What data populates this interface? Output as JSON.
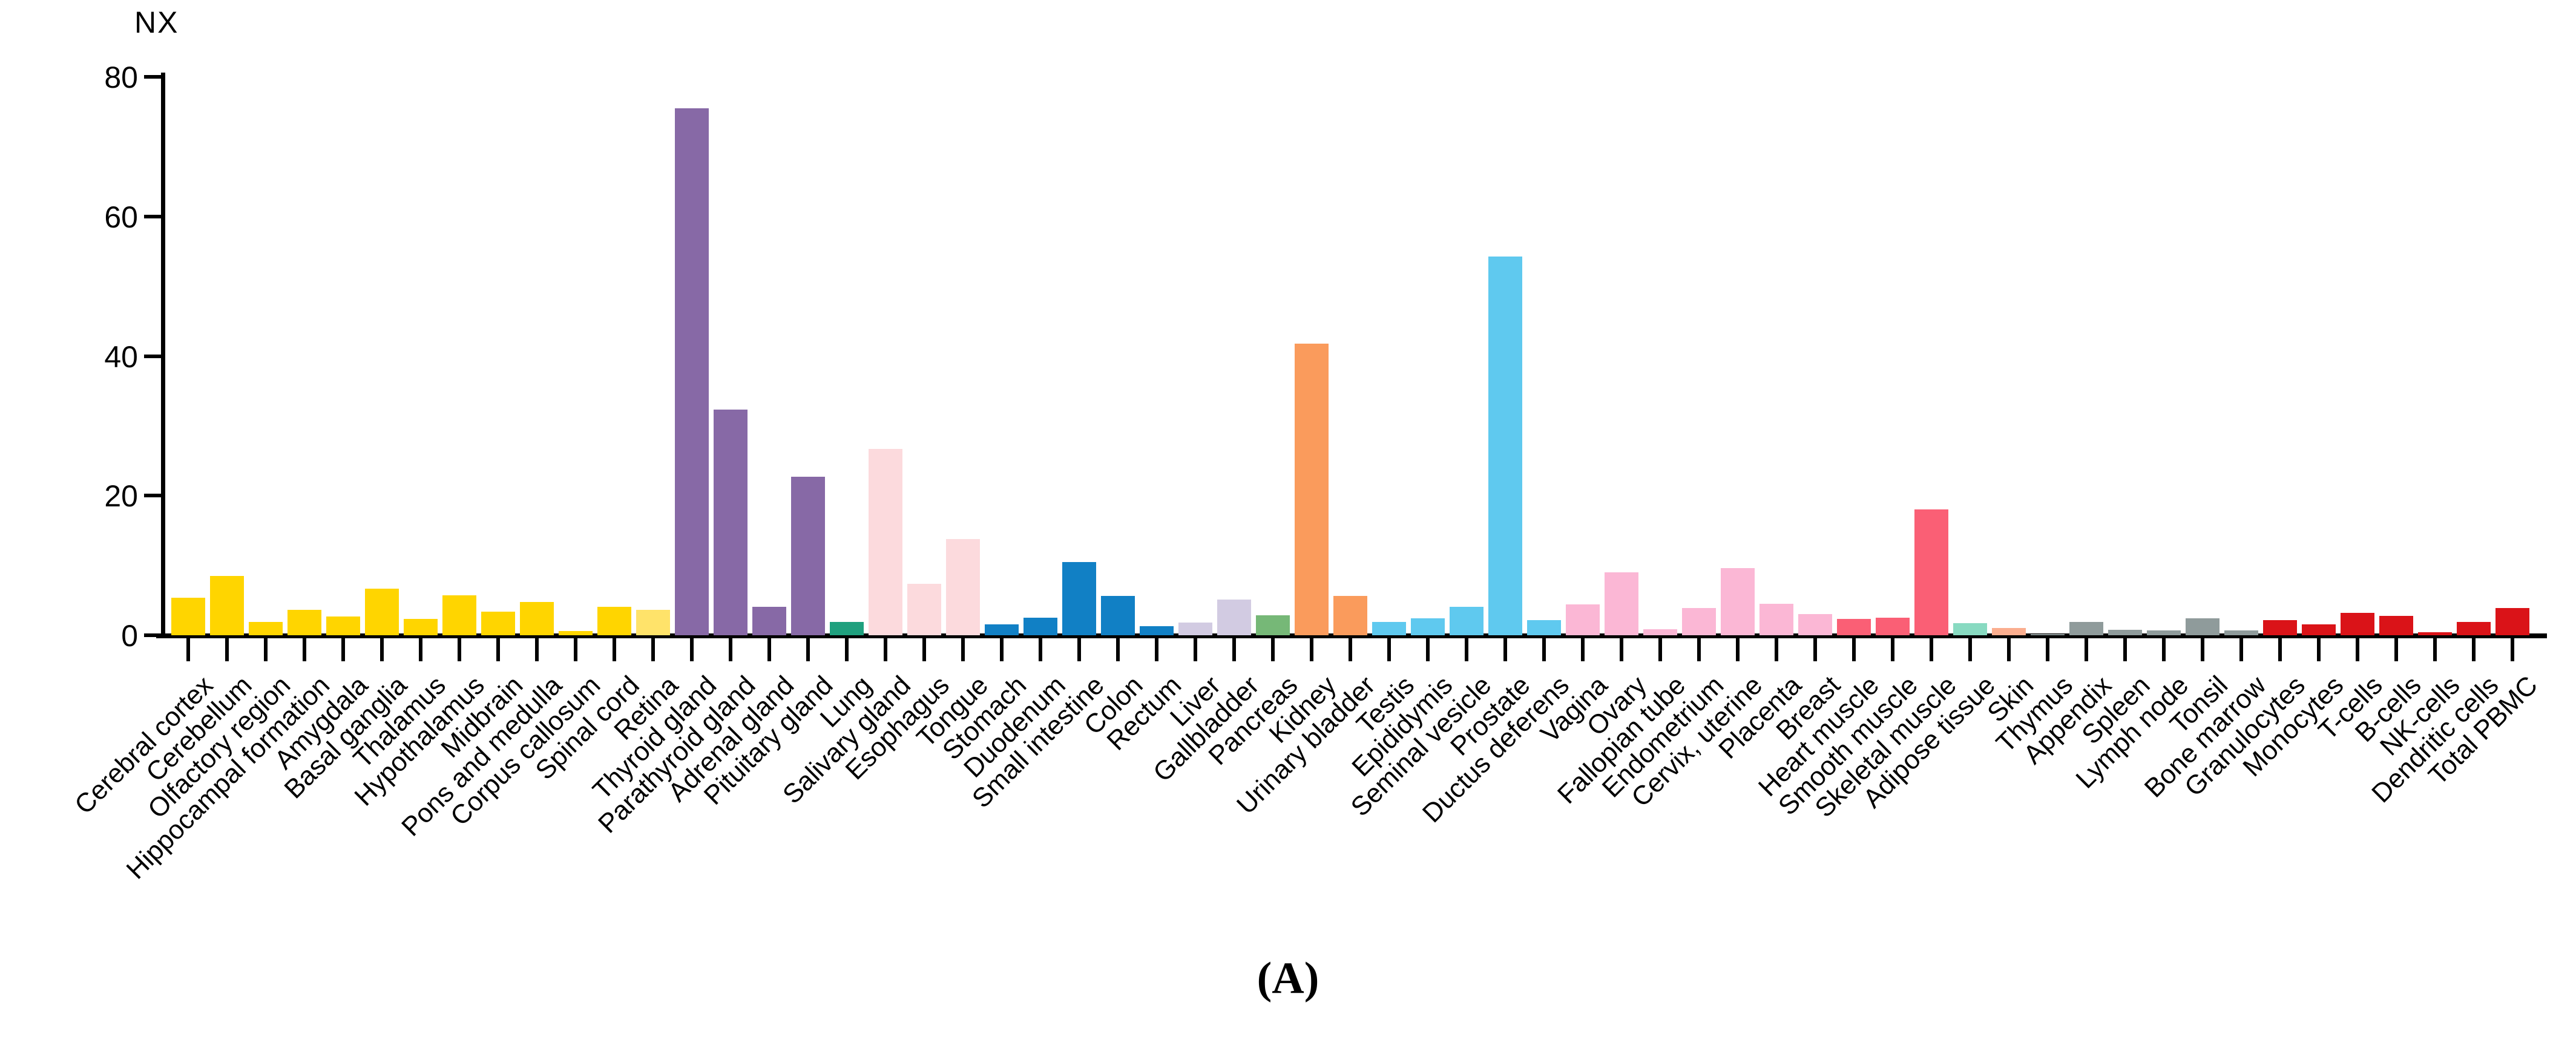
{
  "figure": {
    "y_axis_title": "NX",
    "caption": "(A)"
  },
  "chart_data": {
    "type": "bar",
    "title": "",
    "xlabel": "",
    "ylabel": "NX",
    "ylim": [
      0,
      80
    ],
    "yticks": [
      0,
      20,
      40,
      60,
      80
    ],
    "grid": false,
    "legend": "none",
    "bar_orientation": "vertical",
    "x_label_rotation_deg": 45,
    "palette": {
      "brain": "#FFD500",
      "eye": "#FFE36A",
      "endocrine": "#8769A6",
      "lung": "#1FA07E",
      "gi_upper": "#FCDADD",
      "gi_tract": "#1180C5",
      "liver_gallbladder": "#D2CBE2",
      "pancreas": "#76B877",
      "kidney_urinary": "#FA9B5C",
      "male": "#5FC9EF",
      "female": "#FBB7D5",
      "muscle": "#FA5F75",
      "adipose": "#88DAC1",
      "skin": "#FBAE8F",
      "lymphoid": "#8F9B9B",
      "blood": "#DA1318"
    },
    "series": [
      {
        "name": "NX",
        "points": [
          {
            "category": "Cerebral cortex",
            "group": "brain",
            "value": 5.4
          },
          {
            "category": "Cerebellum",
            "group": "brain",
            "value": 8.5
          },
          {
            "category": "Olfactory region",
            "group": "brain",
            "value": 1.9
          },
          {
            "category": "Hippocampal formation",
            "group": "brain",
            "value": 3.6
          },
          {
            "category": "Amygdala",
            "group": "brain",
            "value": 2.7
          },
          {
            "category": "Basal ganglia",
            "group": "brain",
            "value": 6.7
          },
          {
            "category": "Thalamus",
            "group": "brain",
            "value": 2.3
          },
          {
            "category": "Hypothalamus",
            "group": "brain",
            "value": 5.7
          },
          {
            "category": "Midbrain",
            "group": "brain",
            "value": 3.4
          },
          {
            "category": "Pons and medulla",
            "group": "brain",
            "value": 4.8
          },
          {
            "category": "Corpus callosum",
            "group": "brain",
            "value": 0.6
          },
          {
            "category": "Spinal cord",
            "group": "brain",
            "value": 4.1
          },
          {
            "category": "Retina",
            "group": "eye",
            "value": 3.6
          },
          {
            "category": "Thyroid gland",
            "group": "endocrine",
            "value": 75.5
          },
          {
            "category": "Parathyroid gland",
            "group": "endocrine",
            "value": 32.3
          },
          {
            "category": "Adrenal gland",
            "group": "endocrine",
            "value": 4.1
          },
          {
            "category": "Pituitary gland",
            "group": "endocrine",
            "value": 22.7
          },
          {
            "category": "Lung",
            "group": "lung",
            "value": 1.9
          },
          {
            "category": "Salivary gland",
            "group": "gi_upper",
            "value": 26.7
          },
          {
            "category": "Esophagus",
            "group": "gi_upper",
            "value": 7.4
          },
          {
            "category": "Tongue",
            "group": "gi_upper",
            "value": 13.8
          },
          {
            "category": "Stomach",
            "group": "gi_tract",
            "value": 1.6
          },
          {
            "category": "Duodenum",
            "group": "gi_tract",
            "value": 2.5
          },
          {
            "category": "Small intestine",
            "group": "gi_tract",
            "value": 10.5
          },
          {
            "category": "Colon",
            "group": "gi_tract",
            "value": 5.6
          },
          {
            "category": "Rectum",
            "group": "gi_tract",
            "value": 1.3
          },
          {
            "category": "Liver",
            "group": "liver_gallbladder",
            "value": 1.8
          },
          {
            "category": "Gallbladder",
            "group": "liver_gallbladder",
            "value": 5.1
          },
          {
            "category": "Pancreas",
            "group": "pancreas",
            "value": 2.9
          },
          {
            "category": "Kidney",
            "group": "kidney_urinary",
            "value": 41.8
          },
          {
            "category": "Urinary bladder",
            "group": "kidney_urinary",
            "value": 5.6
          },
          {
            "category": "Testis",
            "group": "male",
            "value": 1.9
          },
          {
            "category": "Epididymis",
            "group": "male",
            "value": 2.4
          },
          {
            "category": "Seminal vesicle",
            "group": "male",
            "value": 4.1
          },
          {
            "category": "Prostate",
            "group": "male",
            "value": 54.3
          },
          {
            "category": "Ductus deferens",
            "group": "male",
            "value": 2.2
          },
          {
            "category": "Vagina",
            "group": "female",
            "value": 4.4
          },
          {
            "category": "Ovary",
            "group": "female",
            "value": 9.0
          },
          {
            "category": "Fallopian tube",
            "group": "female",
            "value": 0.9
          },
          {
            "category": "Endometrium",
            "group": "female",
            "value": 3.9
          },
          {
            "category": "Cervix, uterine",
            "group": "female",
            "value": 9.6
          },
          {
            "category": "Placenta",
            "group": "female",
            "value": 4.5
          },
          {
            "category": "Breast",
            "group": "female",
            "value": 3.0
          },
          {
            "category": "Heart muscle",
            "group": "muscle",
            "value": 2.3
          },
          {
            "category": "Smooth muscle",
            "group": "muscle",
            "value": 2.5
          },
          {
            "category": "Skeletal muscle",
            "group": "muscle",
            "value": 18.0
          },
          {
            "category": "Adipose tissue",
            "group": "adipose",
            "value": 1.7
          },
          {
            "category": "Skin",
            "group": "skin",
            "value": 1.0
          },
          {
            "category": "Thymus",
            "group": "lymphoid",
            "value": 0.15
          },
          {
            "category": "Appendix",
            "group": "lymphoid",
            "value": 1.9
          },
          {
            "category": "Spleen",
            "group": "lymphoid",
            "value": 0.8
          },
          {
            "category": "Lymph node",
            "group": "lymphoid",
            "value": 0.7
          },
          {
            "category": "Tonsil",
            "group": "lymphoid",
            "value": 2.4
          },
          {
            "category": "Bone marrow",
            "group": "lymphoid",
            "value": 0.7
          },
          {
            "category": "Granulocytes",
            "group": "blood",
            "value": 2.2
          },
          {
            "category": "Monocytes",
            "group": "blood",
            "value": 1.6
          },
          {
            "category": "T-cells",
            "group": "blood",
            "value": 3.2
          },
          {
            "category": "B-cells",
            "group": "blood",
            "value": 2.8
          },
          {
            "category": "NK-cells",
            "group": "blood",
            "value": 0.4
          },
          {
            "category": "Dendritic cells",
            "group": "blood",
            "value": 1.9
          },
          {
            "category": "Total PBMC",
            "group": "blood",
            "value": 3.9
          }
        ]
      }
    ]
  }
}
